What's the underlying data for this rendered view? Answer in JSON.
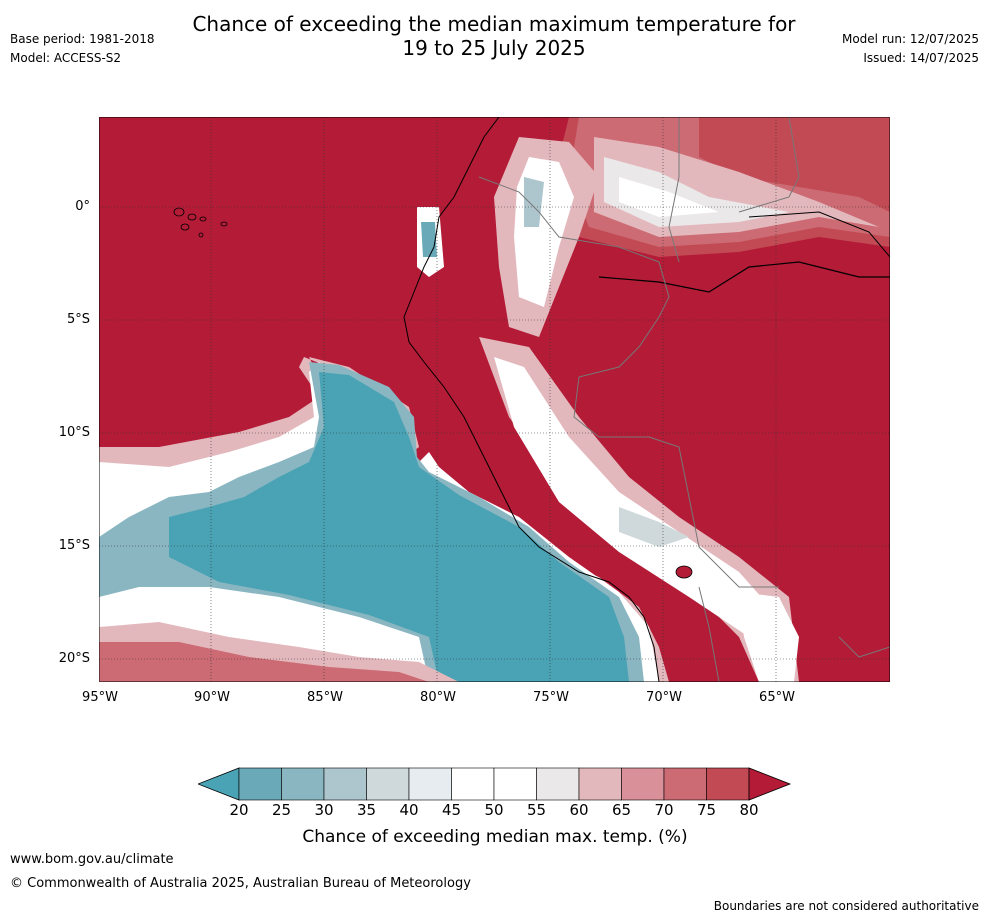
{
  "header": {
    "title_line1": "Chance of exceeding the median maximum temperature for",
    "title_line2": "19 to 25 July 2025",
    "base_period": "Base period: 1981-2018",
    "model": "Model: ACCESS-S2",
    "model_run": "Model run: 12/07/2025",
    "issued": "Issued: 14/07/2025"
  },
  "map": {
    "lat_ticks": [
      "0°",
      "5°S",
      "10°S",
      "15°S",
      "20°S"
    ],
    "lon_ticks": [
      "95°W",
      "90°W",
      "85°W",
      "80°W",
      "75°W",
      "70°W",
      "65°W"
    ],
    "colors": {
      "very_warm": "#b31b36",
      "warm_75": "#c24a55",
      "warm_70": "#cc6b73",
      "warm_65": "#d99098",
      "warm_60": "#e3b8bd",
      "neutral_55": "#ebe8e9",
      "neutral_50": "#ffffff",
      "cool_40": "#e6ecef",
      "cool_35": "#cfd9dc",
      "cool_30": "#adc6cd",
      "cool_25": "#8ab6c2",
      "very_cool": "#4aa3b4"
    }
  },
  "legend": {
    "ticks": [
      "20",
      "25",
      "30",
      "35",
      "40",
      "45",
      "50",
      "55",
      "60",
      "65",
      "70",
      "75",
      "80"
    ],
    "colors": [
      "#4aa3b4",
      "#6aa9b8",
      "#8ab6c2",
      "#adc6cd",
      "#cfd9dc",
      "#e6ecef",
      "#ffffff",
      "#ffffff",
      "#ebe8e9",
      "#e3b8bd",
      "#d99098",
      "#cc6b73",
      "#c24a55",
      "#b31b36"
    ],
    "label": "Chance of exceeding median max. temp. (%)"
  },
  "footer": {
    "website": "www.bom.gov.au/climate",
    "copyright": "© Commonwealth of Australia 2025, Australian Bureau of Meteorology",
    "disclaimer": "Boundaries are not considered authoritative"
  }
}
